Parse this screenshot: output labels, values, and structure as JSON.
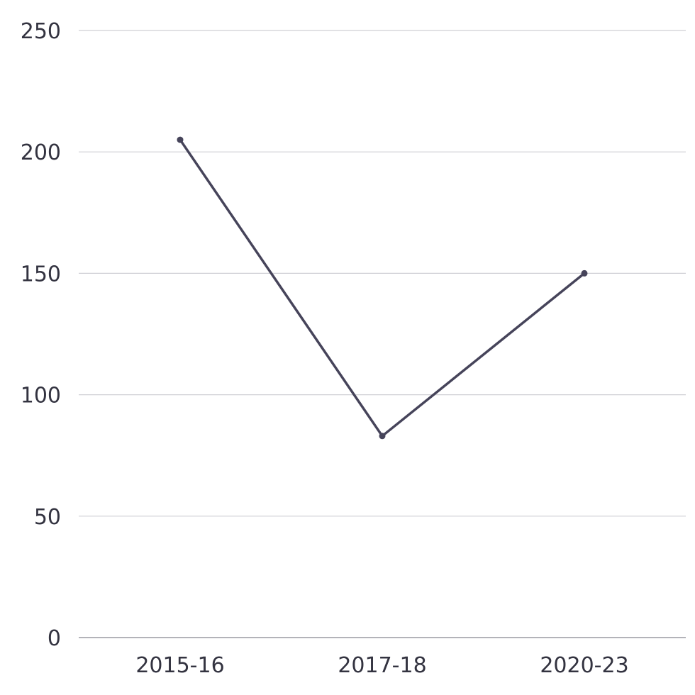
{
  "chart_data": {
    "type": "line",
    "categories": [
      "2015-16",
      "2017-18",
      "2020-23"
    ],
    "series": [
      {
        "values": [
          205,
          83,
          150
        ]
      }
    ],
    "ylim": [
      0,
      250
    ],
    "yticks": [
      0,
      50,
      100,
      150,
      200,
      250
    ],
    "grid": true,
    "legend": "none",
    "colors": {
      "line": "#46445a",
      "grid": "#cfcfd4",
      "baseline": "#9a9aa2",
      "text": "#333340"
    }
  }
}
